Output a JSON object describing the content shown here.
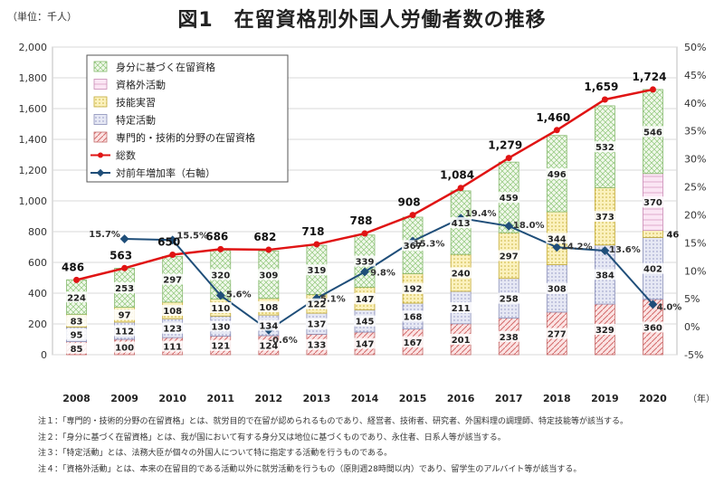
{
  "title": "図1　在留資格別外国人労働者数の推移",
  "unit_label": "（単位：千人）",
  "year_suffix": "（年）",
  "notes": [
    "注１：「専門的・技術的分野の在留資格」とは、就労目的で在留が認められるものであり、経営者、技術者、研究者、外国料理の調理師、特定技能等が該当する。",
    "注２：「身分に基づく在留資格」とは、我が国において有する身分又は地位に基づくものであり、永住者、日系人等が該当する。",
    "注３：「特定活動」とは、法務大臣が個々の外国人について特に指定する活動を行うものである。",
    "注４：「資格外活動」とは、本来の在留目的である活動以外に就労活動を行うもの（原則週28時間以内）であり、留学生のアルバイト等が該当する。"
  ],
  "chart_data": {
    "type": "bar",
    "stacked": true,
    "categories": [
      "2008",
      "2009",
      "2010",
      "2011",
      "2012",
      "2013",
      "2014",
      "2015",
      "2016",
      "2017",
      "2018",
      "2019",
      "2020"
    ],
    "ylim": [
      0,
      2000
    ],
    "yticks": [
      "0",
      "200",
      "400",
      "600",
      "800",
      "1,000",
      "1,200",
      "1,400",
      "1,600",
      "1,800",
      "2,000"
    ],
    "y2lim": [
      -5,
      50
    ],
    "y2ticks": [
      "-5%",
      "0%",
      "5%",
      "10%",
      "15%",
      "20%",
      "25%",
      "30%",
      "35%",
      "40%",
      "45%",
      "50%"
    ],
    "series": [
      {
        "name": "専門的・技術的分野の在留資格",
        "color": "#e8a0a0",
        "values": [
          85,
          100,
          111,
          121,
          124,
          133,
          147,
          167,
          201,
          238,
          277,
          329,
          360
        ],
        "labels": [
          "85",
          "100",
          "111",
          "121",
          "124",
          "133",
          "147",
          "167",
          "201",
          "238",
          "277",
          "329",
          "360"
        ]
      },
      {
        "name": "特定活動",
        "color": "#c9cde8",
        "values": [
          95,
          112,
          123,
          130,
          134,
          137,
          145,
          168,
          211,
          258,
          308,
          384,
          402
        ],
        "labels": [
          "95",
          "112",
          "123",
          "130",
          "134",
          "137",
          "145",
          "168",
          "211",
          "258",
          "308",
          "384",
          "402"
        ]
      },
      {
        "name": "技能実習",
        "color": "#f3e07a",
        "values": [
          83,
          97,
          108,
          110,
          108,
          122,
          147,
          192,
          240,
          297,
          344,
          373,
          46
        ],
        "labels": [
          "83",
          "97",
          "108",
          "110",
          "108",
          "122",
          "147",
          "192",
          "240",
          "297",
          "344",
          "373",
          "46"
        ]
      },
      {
        "name": "資格外活動",
        "color": "#eeb9dd",
        "values": [
          0,
          0,
          0,
          0,
          0,
          0,
          0,
          0,
          0,
          0,
          0,
          0,
          370
        ],
        "labels": [
          "",
          "",
          "",
          "",
          "",
          "",
          "",
          "",
          "",
          "",
          "",
          "",
          "370"
        ]
      },
      {
        "name": "身分に基づく在留資格",
        "color": "#bfe3a6",
        "values": [
          224,
          253,
          297,
          320,
          309,
          319,
          339,
          367,
          413,
          459,
          496,
          532,
          546
        ],
        "labels": [
          "224",
          "253",
          "297",
          "320",
          "309",
          "319",
          "339",
          "367",
          "413",
          "459",
          "496",
          "532",
          "546"
        ]
      }
    ],
    "totals": {
      "name": "総数",
      "color": "#e01414",
      "values": [
        486,
        563,
        650,
        686,
        682,
        718,
        788,
        908,
        1084,
        1279,
        1460,
        1659,
        1724
      ],
      "labels": [
        "486",
        "563",
        "650",
        "686",
        "682",
        "718",
        "788",
        "908",
        "1,084",
        "1,279",
        "1,460",
        "1,659",
        "1,724"
      ]
    },
    "growth": {
      "name": "対前年増加率（右軸）",
      "color": "#1f4e79",
      "values": [
        null,
        15.7,
        15.5,
        5.6,
        -0.6,
        5.1,
        9.8,
        15.3,
        19.4,
        18.0,
        14.2,
        13.6,
        4.0
      ],
      "labels": [
        "",
        "15.7%",
        "15.5%",
        "5.6%",
        "-0.6%",
        "5.1%",
        "9.8%",
        "15.3%",
        "19.4%",
        "18.0%",
        "14.2%",
        "13.6%",
        "4.0%"
      ]
    },
    "legend_order": [
      "身分に基づく在留資格",
      "資格外活動",
      "技能実習",
      "特定活動",
      "専門的・技術的分野の在留資格",
      "総数",
      "対前年増加率（右軸）"
    ],
    "legend_position": "top-left"
  }
}
